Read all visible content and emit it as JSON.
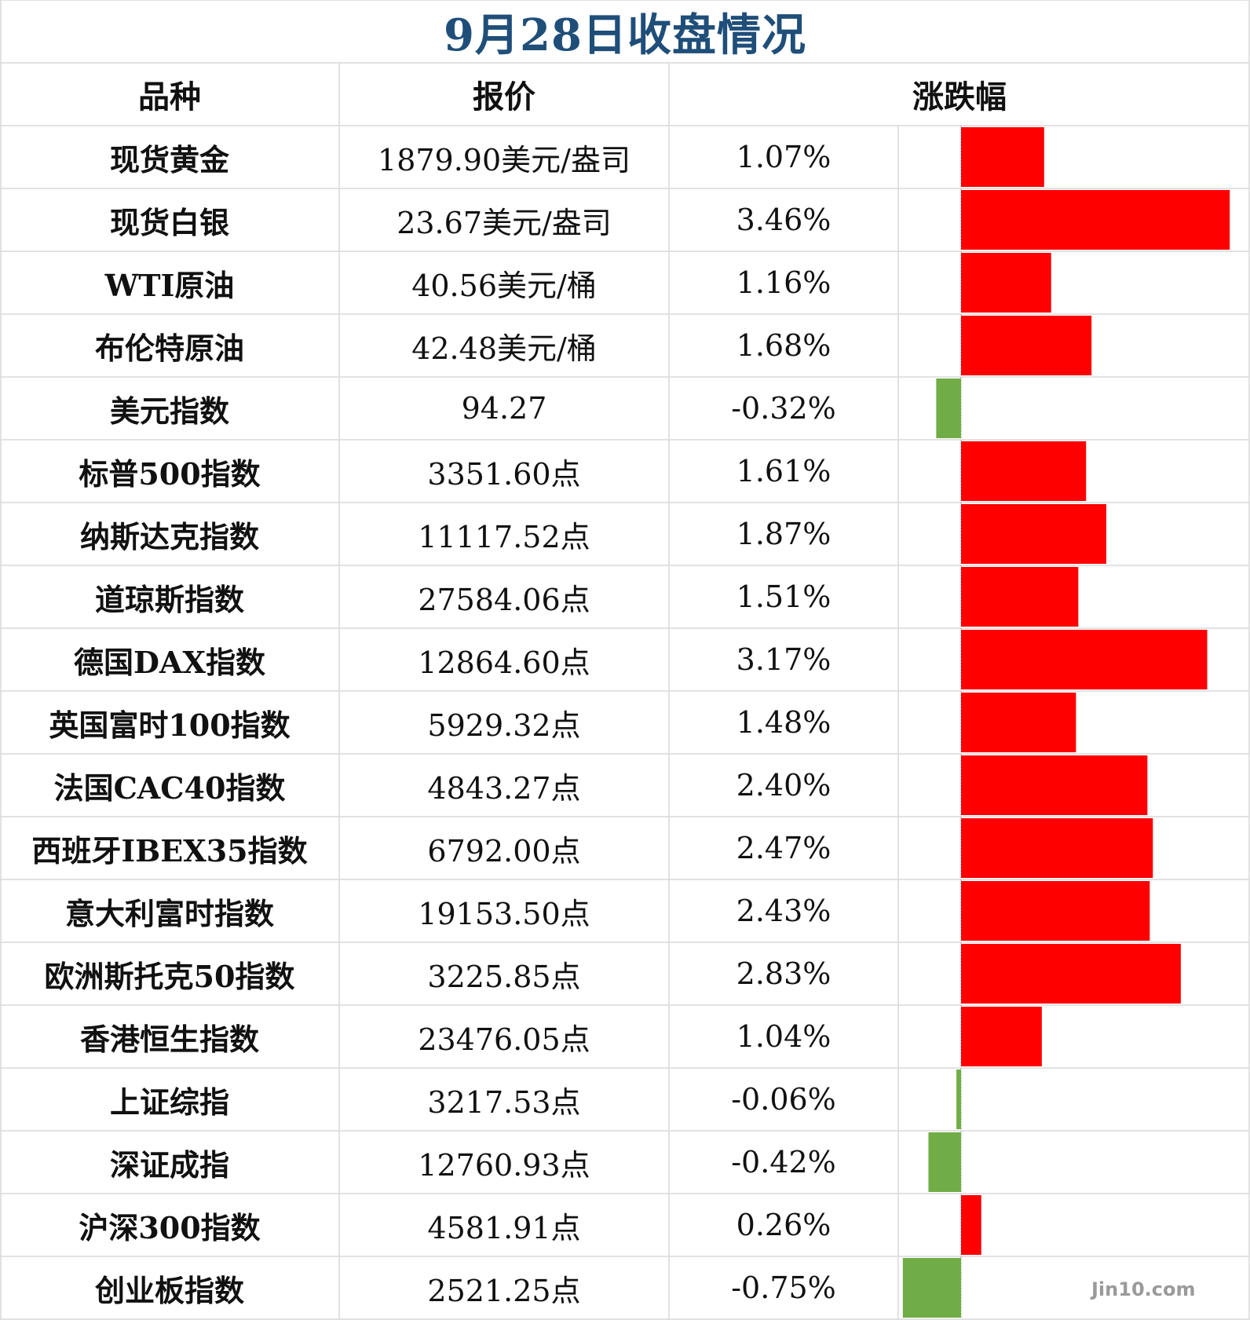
{
  "title": "9月28日收盘情况",
  "headers": {
    "name": "品种",
    "price": "报价",
    "change": "涨跌幅"
  },
  "watermark": "Jin10.com",
  "colors": {
    "title": "#1f4e79",
    "positive": "#ff0000",
    "negative": "#70ad47",
    "grid": "#d9d9d9"
  },
  "rows": [
    {
      "name": "现货黄金",
      "price": "1879.90美元/盎司",
      "change": "1.07%"
    },
    {
      "name": "现货白银",
      "price": "23.67美元/盎司",
      "change": "3.46%"
    },
    {
      "name": "WTI原油",
      "price": "40.56美元/桶",
      "change": "1.16%"
    },
    {
      "name": "布伦特原油",
      "price": "42.48美元/桶",
      "change": "1.68%"
    },
    {
      "name": "美元指数",
      "price": "94.27",
      "change": "-0.32%"
    },
    {
      "name": "标普500指数",
      "price": "3351.60点",
      "change": "1.61%"
    },
    {
      "name": "纳斯达克指数",
      "price": "11117.52点",
      "change": "1.87%"
    },
    {
      "name": "道琼斯指数",
      "price": "27584.06点",
      "change": "1.51%"
    },
    {
      "name": "德国DAX指数",
      "price": "12864.60点",
      "change": "3.17%"
    },
    {
      "name": "英国富时100指数",
      "price": "5929.32点",
      "change": "1.48%"
    },
    {
      "name": "法国CAC40指数",
      "price": "4843.27点",
      "change": "2.40%"
    },
    {
      "name": "西班牙IBEX35指数",
      "price": "6792.00点",
      "change": "2.47%"
    },
    {
      "name": "意大利富时指数",
      "price": "19153.50点",
      "change": "2.43%"
    },
    {
      "name": "欧洲斯托克50指数",
      "price": "3225.85点",
      "change": "2.83%"
    },
    {
      "name": "香港恒生指数",
      "price": "23476.05点",
      "change": "1.04%"
    },
    {
      "name": "上证综指",
      "price": "3217.53点",
      "change": "-0.06%"
    },
    {
      "name": "深证成指",
      "price": "12760.93点",
      "change": "-0.42%"
    },
    {
      "name": "沪深300指数",
      "price": "4581.91点",
      "change": "0.26%"
    },
    {
      "name": "创业板指数",
      "price": "2521.25点",
      "change": "-0.75%"
    }
  ],
  "chart_data": {
    "type": "bar",
    "orientation": "horizontal",
    "categories": [
      "现货黄金",
      "现货白银",
      "WTI原油",
      "布伦特原油",
      "美元指数",
      "标普500指数",
      "纳斯达克指数",
      "道琼斯指数",
      "德国DAX指数",
      "英国富时100指数",
      "法国CAC40指数",
      "西班牙IBEX35指数",
      "意大利富时指数",
      "欧洲斯托克50指数",
      "香港恒生指数",
      "上证综指",
      "深证成指",
      "沪深300指数",
      "创业板指数"
    ],
    "values": [
      1.07,
      3.46,
      1.16,
      1.68,
      -0.32,
      1.61,
      1.87,
      1.51,
      3.17,
      1.48,
      2.4,
      2.47,
      2.43,
      2.83,
      1.04,
      -0.06,
      -0.42,
      0.26,
      -0.75
    ],
    "unit": "%",
    "xlim": [
      -0.75,
      3.46
    ]
  }
}
